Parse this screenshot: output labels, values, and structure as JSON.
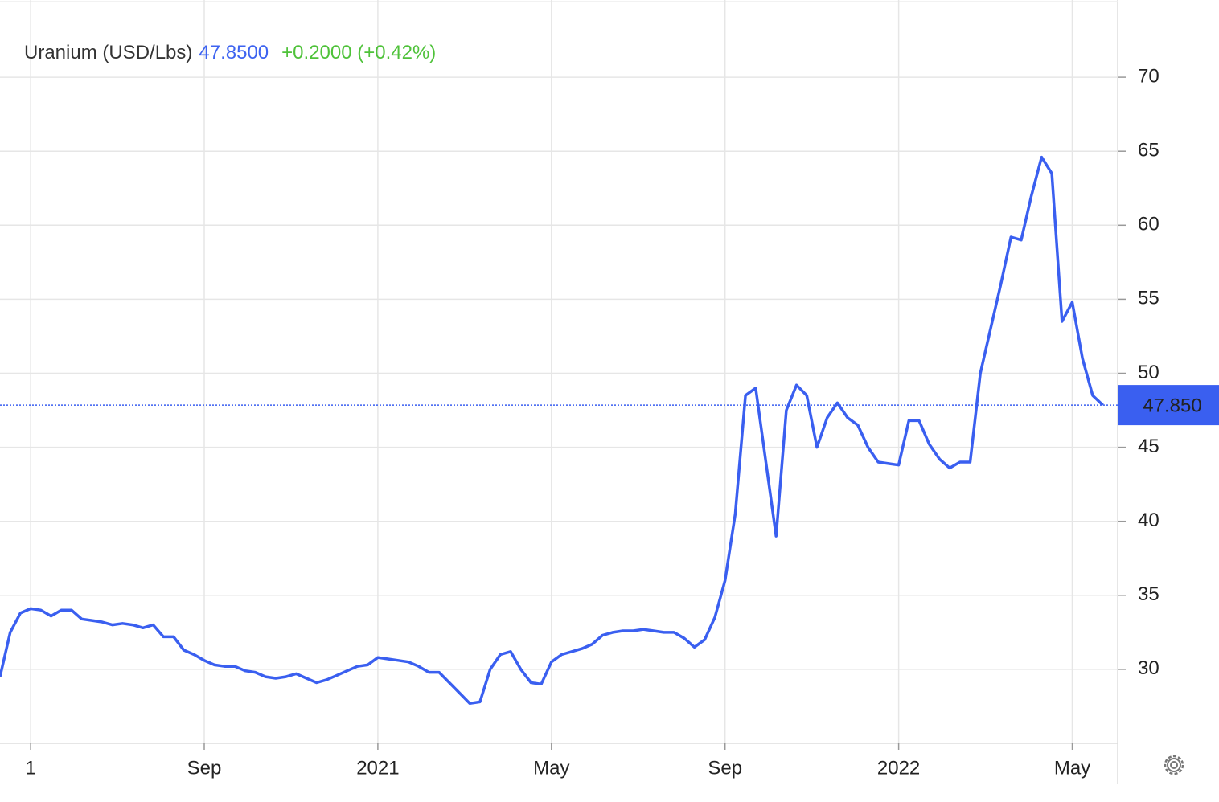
{
  "chart_data": {
    "type": "line",
    "title": "Uranium (USD/Lbs)",
    "price": "47.8500",
    "change": "+0.2000 (+0.42%)",
    "categories": [
      null,
      null,
      null,
      "1",
      null,
      null,
      null,
      null,
      null,
      null,
      null,
      null,
      null,
      null,
      null,
      null,
      null,
      null,
      null,
      null,
      "Sep",
      null,
      null,
      null,
      null,
      null,
      null,
      null,
      null,
      null,
      null,
      null,
      null,
      null,
      null,
      null,
      null,
      "2021",
      null,
      null,
      null,
      null,
      null,
      null,
      null,
      null,
      null,
      null,
      null,
      null,
      null,
      null,
      null,
      null,
      "May",
      null,
      null,
      null,
      null,
      null,
      null,
      null,
      null,
      null,
      null,
      null,
      null,
      null,
      null,
      null,
      null,
      "Sep",
      null,
      null,
      null,
      null,
      null,
      null,
      null,
      null,
      null,
      null,
      null,
      null,
      null,
      null,
      null,
      null,
      "2022",
      null,
      null,
      null,
      null,
      null,
      null,
      null,
      null,
      null,
      null,
      null,
      null,
      null,
      null,
      null,
      null,
      "May",
      null,
      null,
      null
    ],
    "series": [
      {
        "name": "Uranium (USD/Lbs)",
        "color": "#3a5ff0",
        "values": [
          29.5,
          32.5,
          33.8,
          34.1,
          34.0,
          33.6,
          34.0,
          34.0,
          33.4,
          33.3,
          33.2,
          33.0,
          33.1,
          33.0,
          32.8,
          33.0,
          32.2,
          32.2,
          31.3,
          31.0,
          30.6,
          30.3,
          30.2,
          30.2,
          29.9,
          29.8,
          29.5,
          29.4,
          29.5,
          29.7,
          29.4,
          29.1,
          29.3,
          29.6,
          29.9,
          30.2,
          30.3,
          30.8,
          30.7,
          30.6,
          30.5,
          30.2,
          29.8,
          29.8,
          29.1,
          28.4,
          27.7,
          27.8,
          30.0,
          31.0,
          31.2,
          30.0,
          29.1,
          29.0,
          30.5,
          31.0,
          31.2,
          31.4,
          31.7,
          32.3,
          32.5,
          32.6,
          32.6,
          32.7,
          32.6,
          32.5,
          32.5,
          32.1,
          31.5,
          32.0,
          33.5,
          36.0,
          40.5,
          48.5,
          49.0,
          44.0,
          39.0,
          47.5,
          49.2,
          48.5,
          45.0,
          47.0,
          48.0,
          47.0,
          46.5,
          45.0,
          44.0,
          43.9,
          43.8,
          46.8,
          46.8,
          45.2,
          44.2,
          43.6,
          44.0,
          44.0,
          50.0,
          53.0,
          56.0,
          59.2,
          59.0,
          62.0,
          64.6,
          63.5,
          53.5,
          54.8,
          51.0,
          48.5,
          47.85
        ]
      }
    ],
    "price_marker": {
      "value": 47.85,
      "label": "47.850"
    },
    "ylim": [
      25,
      75
    ],
    "yticks": [
      30,
      35,
      40,
      45,
      50,
      55,
      60,
      65,
      70
    ],
    "grid": true
  }
}
